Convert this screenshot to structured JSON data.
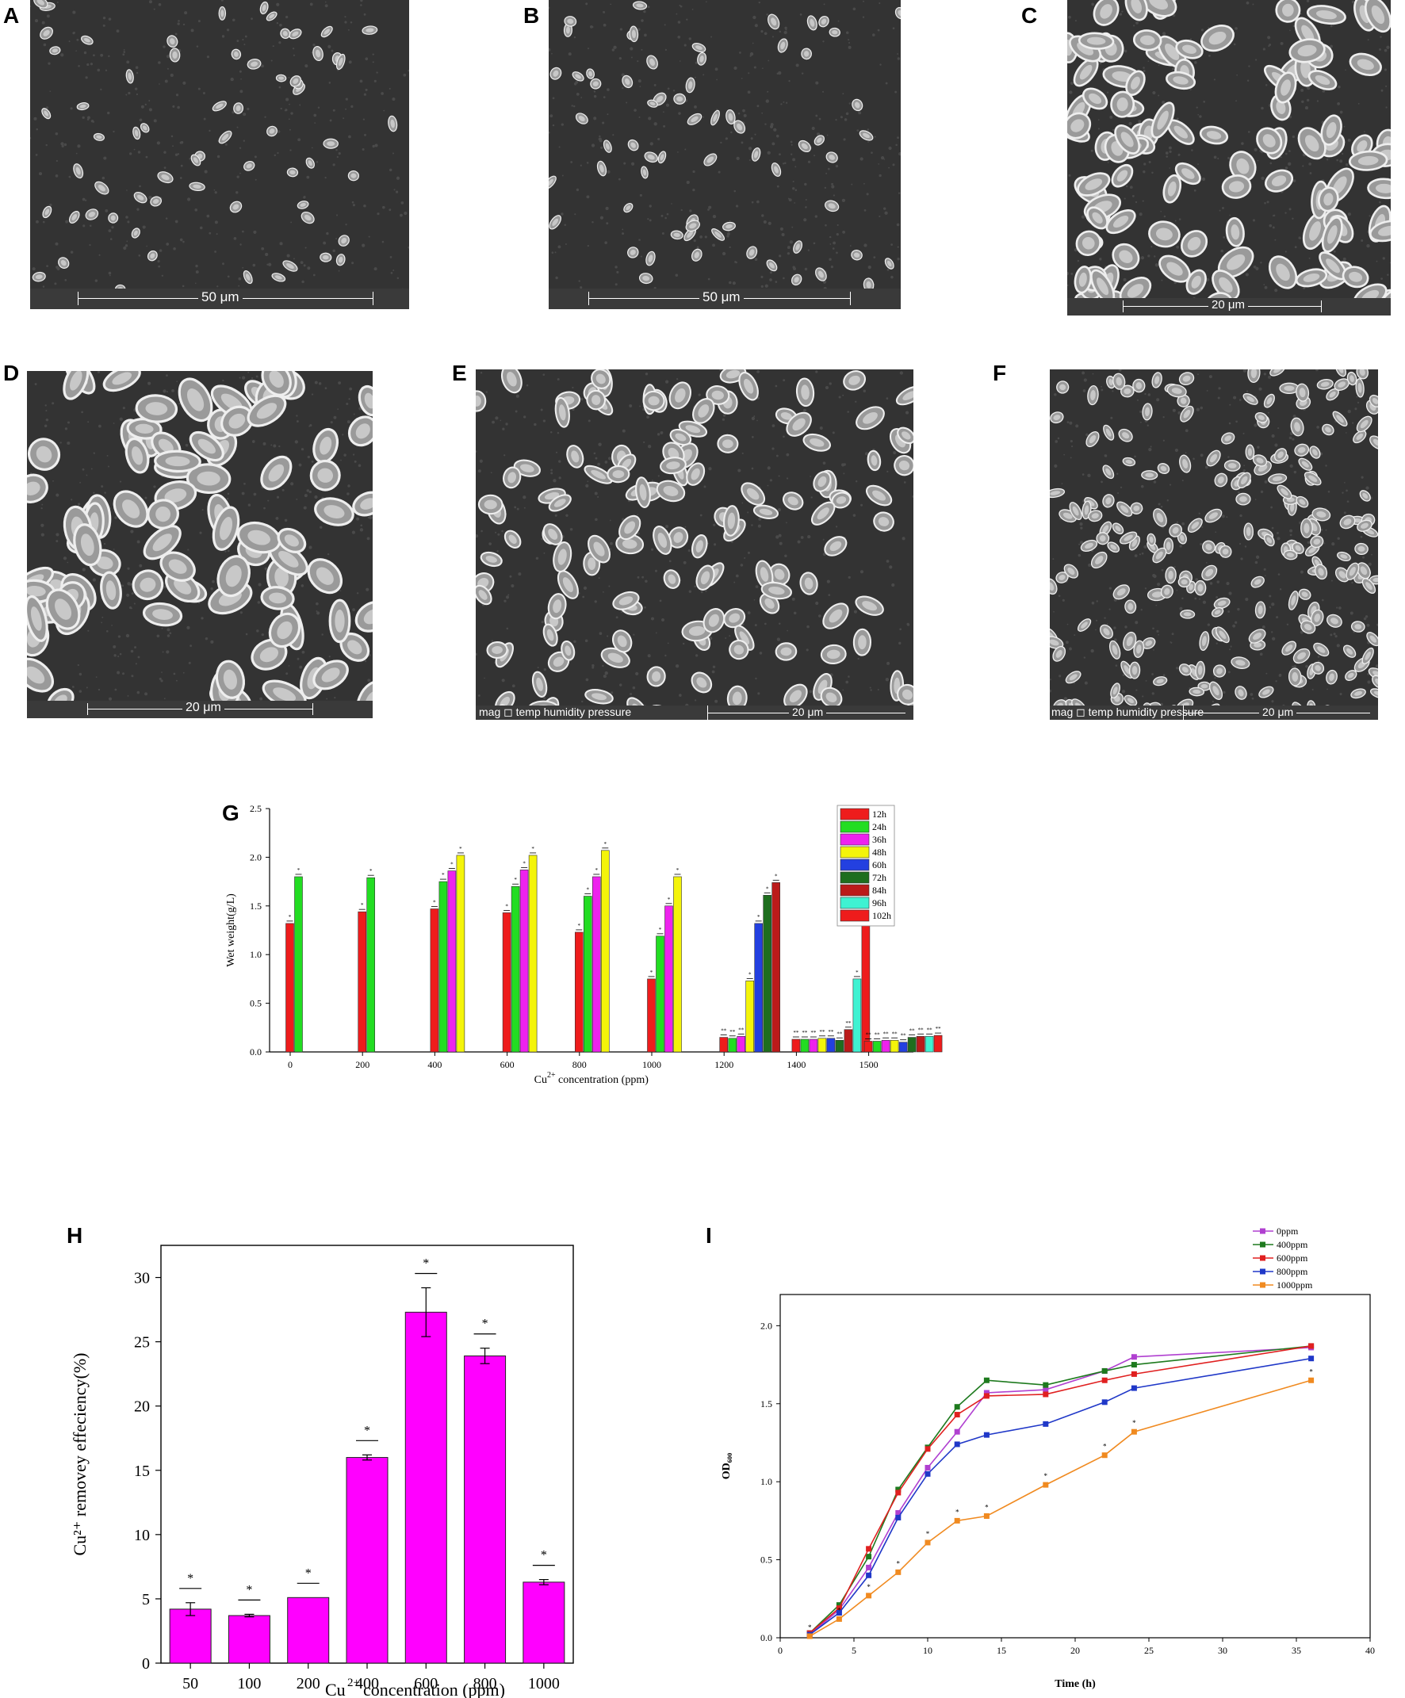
{
  "panels": {
    "A": {
      "label": "A",
      "scale_text": "50 μm"
    },
    "B": {
      "label": "B",
      "scale_text": "50 μm"
    },
    "C": {
      "label": "C",
      "scale_text": "20 μm"
    },
    "D": {
      "label": "D",
      "scale_text": "20 μm"
    },
    "E": {
      "label": "E",
      "footer_text": "mag  ◻ temp  humidity  pressure",
      "scale_text": "20 μm"
    },
    "F": {
      "label": "F",
      "footer_text": "mag  ◻ temp  humidity  pressure",
      "scale_text": "20 μm"
    },
    "G": {
      "label": "G"
    },
    "H": {
      "label": "H"
    },
    "I": {
      "label": "I"
    }
  },
  "chart_data": [
    {
      "id": "G",
      "type": "bar",
      "title": "",
      "xlabel": "Cu²⁺ concentration (ppm)",
      "ylabel": "Wet weight(g/L)",
      "ylim": [
        0,
        2.5
      ],
      "yticks": [
        "0.0",
        "0.5",
        "1.0",
        "1.5",
        "2.0",
        "2.5"
      ],
      "categories": [
        "0",
        "200",
        "400",
        "600",
        "800",
        "1000",
        "1200",
        "1400",
        "1500"
      ],
      "legend_position": "top-right",
      "series": [
        {
          "name": "12h",
          "color": "#ee1c1c",
          "values": [
            1.32,
            1.44,
            1.47,
            1.43,
            1.23,
            0.75,
            0.15,
            0.13,
            0.11
          ]
        },
        {
          "name": "24h",
          "color": "#22dd22",
          "values": [
            1.8,
            1.79,
            1.75,
            1.7,
            1.6,
            1.19,
            0.14,
            0.13,
            0.11
          ]
        },
        {
          "name": "36h",
          "color": "#ee22ee",
          "values": [
            null,
            null,
            1.86,
            1.87,
            1.8,
            1.5,
            0.16,
            0.13,
            0.12
          ]
        },
        {
          "name": "48h",
          "color": "#f4f40a",
          "values": [
            null,
            null,
            2.02,
            2.02,
            2.07,
            1.8,
            0.73,
            0.14,
            0.12
          ]
        },
        {
          "name": "60h",
          "color": "#2340e0",
          "values": [
            null,
            null,
            null,
            null,
            null,
            null,
            1.32,
            0.14,
            0.1
          ]
        },
        {
          "name": "72h",
          "color": "#1e6e1e",
          "values": [
            null,
            null,
            null,
            null,
            null,
            null,
            1.61,
            0.12,
            0.15
          ]
        },
        {
          "name": "84h",
          "color": "#bb1a1a",
          "values": [
            null,
            null,
            null,
            null,
            null,
            null,
            1.74,
            0.23,
            0.16
          ]
        },
        {
          "name": "96h",
          "color": "#3ff2d2",
          "values": [
            null,
            null,
            null,
            null,
            null,
            null,
            null,
            0.75,
            0.16
          ]
        },
        {
          "name": "102h",
          "color": "#ee1c1c",
          "values": [
            null,
            null,
            null,
            null,
            null,
            null,
            null,
            1.31,
            0.17
          ]
        }
      ]
    },
    {
      "id": "H",
      "type": "bar",
      "title": "",
      "xlabel": "Cu²⁺ concentration (ppm)",
      "ylabel": "Cu²⁺ removey effeciency(%)",
      "ylim": [
        0,
        32.5
      ],
      "yticks": [
        "0",
        "5",
        "10",
        "15",
        "20",
        "25",
        "30"
      ],
      "categories": [
        "50",
        "100",
        "200",
        "400",
        "600",
        "800",
        "1000"
      ],
      "values": [
        4.2,
        3.7,
        5.1,
        16.0,
        27.3,
        23.9,
        6.3
      ],
      "errors": [
        0.5,
        0.1,
        0.0,
        0.2,
        1.9,
        0.6,
        0.2
      ],
      "color": "#ff00ff"
    },
    {
      "id": "I",
      "type": "line",
      "title": "",
      "xlabel": "Time (h)",
      "ylabel": "OD₆₀₀",
      "xlim": [
        0,
        40
      ],
      "ylim": [
        0,
        2.2
      ],
      "xticks": [
        "0",
        "5",
        "10",
        "15",
        "20",
        "25",
        "30",
        "35",
        "40"
      ],
      "yticks": [
        "0.0",
        "0.5",
        "1.0",
        "1.5",
        "2.0"
      ],
      "legend_position": "top-right",
      "x": [
        2,
        4,
        6,
        8,
        10,
        12,
        14,
        18,
        22,
        24,
        36
      ],
      "series": [
        {
          "name": "0ppm",
          "color": "#b040d0",
          "values": [
            0.02,
            0.18,
            0.45,
            0.8,
            1.09,
            1.32,
            1.57,
            1.59,
            1.71,
            1.8,
            1.86
          ]
        },
        {
          "name": "400ppm",
          "color": "#1e7a1e",
          "values": [
            0.03,
            0.21,
            0.52,
            0.95,
            1.22,
            1.48,
            1.65,
            1.62,
            1.71,
            1.75,
            1.87
          ]
        },
        {
          "name": "600ppm",
          "color": "#e02020",
          "values": [
            0.03,
            0.19,
            0.57,
            0.93,
            1.21,
            1.43,
            1.55,
            1.56,
            1.65,
            1.69,
            1.87
          ]
        },
        {
          "name": "800ppm",
          "color": "#2038c8",
          "values": [
            0.02,
            0.16,
            0.4,
            0.77,
            1.05,
            1.24,
            1.3,
            1.37,
            1.51,
            1.6,
            1.79
          ]
        },
        {
          "name": "1000ppm",
          "color": "#f08a20",
          "values": [
            0.01,
            0.12,
            0.27,
            0.42,
            0.61,
            0.75,
            0.78,
            0.98,
            1.17,
            1.32,
            1.65
          ]
        }
      ]
    }
  ]
}
